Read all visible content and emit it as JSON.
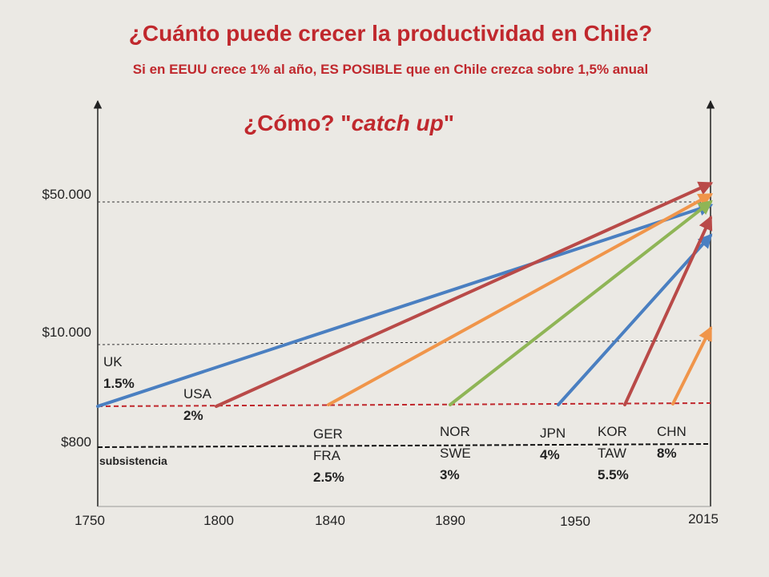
{
  "slide": {
    "title": "¿Cuánto puede crecer la productividad en Chile?",
    "subtitle": "Si en EEUU crece 1% al año, ES POSIBLE que en Chile crezca sobre 1,5% anual",
    "how_prefix": "¿Cómo? \"",
    "how_emph": "catch up",
    "how_suffix": "\""
  },
  "chart_data": {
    "type": "line",
    "title": "",
    "xlabel": "",
    "ylabel": "",
    "x_ticks": [
      "1750",
      "1800",
      "1840",
      "1890",
      "1950",
      "2015"
    ],
    "y_ticks": [
      "$800",
      "$10.000",
      "$50.000"
    ],
    "subsistence_label": "subsistencia",
    "series": [
      {
        "name": "UK",
        "rate": "1.5%",
        "start": "1750",
        "end": "2015",
        "end_level": 46000,
        "color": "#4a7fc1"
      },
      {
        "name": "USA",
        "rate": "2%",
        "start": "1800",
        "end": "2015",
        "end_level": 60000,
        "color": "#b94a48"
      },
      {
        "name": "GER FRA",
        "rate": "2.5%",
        "start": "1840",
        "end": "2015",
        "end_level": 52000,
        "color": "#f0954a"
      },
      {
        "name": "NOR SWE",
        "rate": "3%",
        "start": "1890",
        "end": "2015",
        "end_level": 48000,
        "color": "#8fb556"
      },
      {
        "name": "JPN",
        "rate": "4%",
        "start": "1950",
        "end": "2015",
        "end_level": 36000,
        "color": "#4a7fc1"
      },
      {
        "name": "KOR TAW",
        "rate": "5.5%",
        "start": "1970",
        "end": "2015",
        "end_level": 40000,
        "color": "#b94a48"
      },
      {
        "name": "CHN",
        "rate": "8%",
        "start": "1990",
        "end": "2015",
        "end_level": 13000,
        "color": "#f0954a"
      }
    ],
    "legend_labels": [
      {
        "lines": [
          "UK"
        ],
        "rate": "1.5%"
      },
      {
        "lines": [
          "USA"
        ],
        "rate": "2%"
      },
      {
        "lines": [
          "GER",
          "FRA"
        ],
        "rate": "2.5%"
      },
      {
        "lines": [
          "NOR",
          "SWE"
        ],
        "rate": "3%"
      },
      {
        "lines": [
          "JPN"
        ],
        "rate": "4%"
      },
      {
        "lines": [
          "KOR",
          "TAW"
        ],
        "rate": "5.5%"
      },
      {
        "lines": [
          "CHN"
        ],
        "rate": "8%"
      }
    ],
    "colors": {
      "red_baseline": "#c0282d",
      "gridline": "#333333",
      "axis": "#222222"
    }
  }
}
